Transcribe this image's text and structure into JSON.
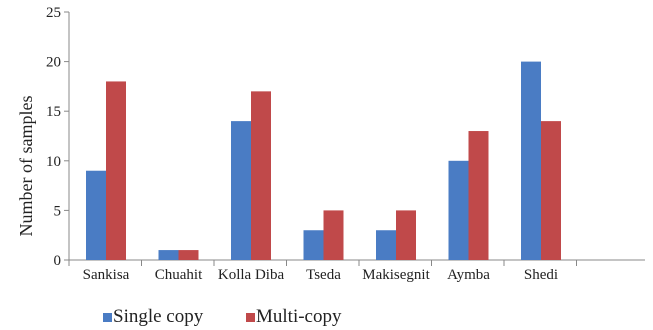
{
  "chart_data": {
    "type": "bar",
    "categories": [
      "Sankisa",
      "Chuahit",
      "Kolla Diba",
      "Tseda",
      "Makisegnit",
      "Aymba",
      "Shedi"
    ],
    "series": [
      {
        "name": "Single copy",
        "values": [
          9,
          1,
          14,
          3,
          3,
          10,
          20
        ],
        "color": "#4a7cc4"
      },
      {
        "name": "Multi-copy",
        "values": [
          18,
          1,
          17,
          5,
          5,
          13,
          14
        ],
        "color": "#c0494a"
      }
    ],
    "xlabel": "",
    "ylabel": "Number of samples",
    "ylim": [
      0,
      25
    ],
    "yticks": [
      "0",
      "5",
      "10",
      "15",
      "20",
      "25"
    ],
    "grid": false,
    "legend_position": "bottom-left"
  }
}
